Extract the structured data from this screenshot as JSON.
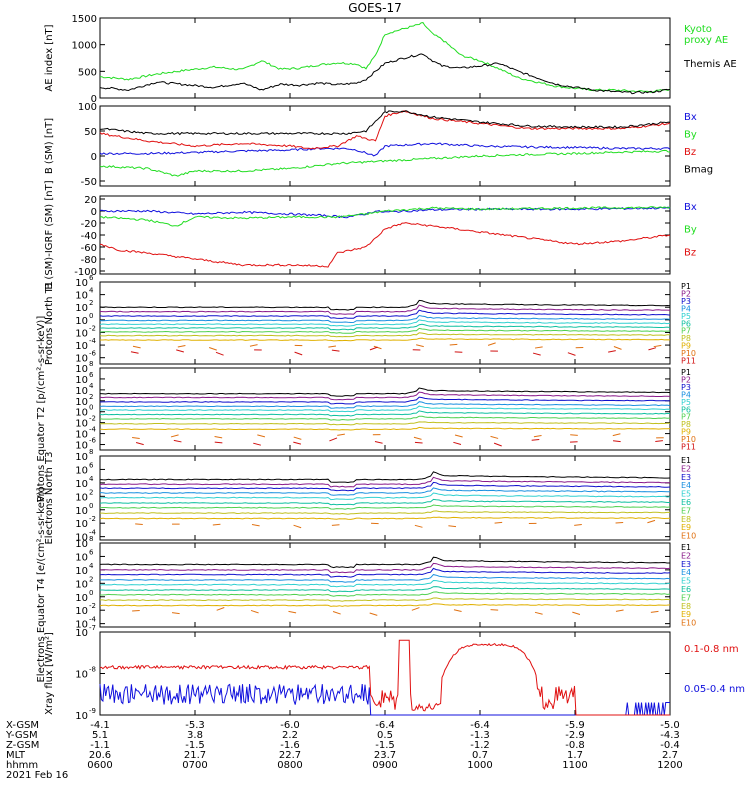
{
  "title": "GOES-17",
  "colors": {
    "black": "#000000",
    "red": "#e01010",
    "green": "#22dd22",
    "blue": "#1010dd",
    "p_colors": [
      "#000000",
      "#8a1a8a",
      "#1010cc",
      "#1a90e0",
      "#30d0d0",
      "#10c0a0",
      "#50d050",
      "#c0c020",
      "#e0b000",
      "#e07010",
      "#d01010"
    ]
  },
  "chart_data": [
    {
      "type": "line",
      "ylabel": "AE index [nT]",
      "ylim": [
        0,
        1500
      ],
      "yticks": [
        "1500",
        "1000",
        "500",
        "0"
      ],
      "log": false,
      "series": [
        {
          "name": "Kyoto proxy AE",
          "color_key": "green",
          "x": [
            6.0,
            6.3,
            6.6,
            6.9,
            7.2,
            7.5,
            7.7,
            7.9,
            8.1,
            8.3,
            8.5,
            8.7,
            8.8,
            8.9,
            9.0,
            9.2,
            9.4,
            9.5,
            9.6,
            9.8,
            10.0,
            10.2,
            10.4,
            10.6,
            10.8,
            11.0,
            11.2,
            11.4,
            11.6,
            11.8,
            12.0
          ],
          "y": [
            400,
            350,
            450,
            520,
            580,
            530,
            700,
            540,
            560,
            620,
            660,
            640,
            550,
            800,
            1200,
            1300,
            1400,
            1200,
            1100,
            800,
            700,
            550,
            380,
            300,
            220,
            180,
            150,
            150,
            130,
            120,
            160
          ]
        },
        {
          "name": "Themis AE",
          "color_key": "black",
          "x": [
            6.0,
            6.3,
            6.6,
            6.9,
            7.2,
            7.5,
            7.7,
            7.9,
            8.1,
            8.3,
            8.5,
            8.7,
            8.8,
            8.9,
            9.0,
            9.2,
            9.4,
            9.5,
            9.6,
            9.8,
            10.0,
            10.2,
            10.4,
            10.6,
            10.8,
            11.0,
            11.2,
            11.4,
            11.6,
            11.8,
            12.0
          ],
          "y": [
            200,
            150,
            300,
            250,
            200,
            280,
            150,
            260,
            240,
            280,
            250,
            280,
            350,
            500,
            650,
            750,
            830,
            700,
            600,
            560,
            600,
            650,
            500,
            380,
            260,
            200,
            150,
            120,
            100,
            110,
            160
          ]
        }
      ],
      "legend": [
        {
          "lines": [
            "Kyoto",
            "proxy AE"
          ],
          "color_key": "green"
        },
        {
          "lines": [
            "Themis AE"
          ],
          "color_key": "black"
        }
      ]
    },
    {
      "type": "line",
      "ylabel": "B (SM) [nT]",
      "ylim": [
        -60,
        100
      ],
      "yticks": [
        "100",
        "50",
        "0",
        "-50"
      ],
      "log": false,
      "series": [
        {
          "name": "Bx",
          "color_key": "blue",
          "x": [
            6.0,
            6.5,
            7.0,
            7.5,
            8.0,
            8.3,
            8.6,
            8.7,
            8.9,
            9.0,
            9.5,
            10.0,
            10.5,
            11.0,
            11.5,
            12.0
          ],
          "y": [
            5,
            5,
            7,
            10,
            12,
            15,
            15,
            12,
            0,
            20,
            25,
            20,
            18,
            17,
            15,
            15
          ]
        },
        {
          "name": "By",
          "color_key": "green",
          "x": [
            6.0,
            6.5,
            6.8,
            7.0,
            7.5,
            8.0,
            8.5,
            9.0,
            9.5,
            10.0,
            10.5,
            11.0,
            11.5,
            12.0
          ],
          "y": [
            -20,
            -25,
            -40,
            -30,
            -30,
            -25,
            -15,
            -10,
            -5,
            0,
            3,
            5,
            8,
            10
          ]
        },
        {
          "name": "Bz",
          "color_key": "red",
          "x": [
            6.0,
            6.5,
            7.0,
            7.5,
            8.0,
            8.2,
            8.5,
            8.7,
            8.9,
            9.0,
            9.2,
            9.5,
            10.0,
            10.5,
            11.0,
            11.5,
            12.0
          ],
          "y": [
            45,
            30,
            20,
            25,
            20,
            15,
            20,
            40,
            30,
            80,
            90,
            75,
            65,
            55,
            55,
            55,
            65
          ]
        },
        {
          "name": "Bmag",
          "color_key": "black",
          "x": [
            6.0,
            6.5,
            7.0,
            7.5,
            8.0,
            8.3,
            8.6,
            8.8,
            9.0,
            9.2,
            9.5,
            10.0,
            10.5,
            11.0,
            11.5,
            12.0
          ],
          "y": [
            55,
            45,
            45,
            45,
            45,
            45,
            45,
            50,
            88,
            90,
            78,
            68,
            60,
            58,
            58,
            68
          ]
        }
      ],
      "legend": [
        {
          "lines": [
            "Bx"
          ],
          "color_key": "blue"
        },
        {
          "lines": [
            "By"
          ],
          "color_key": "green"
        },
        {
          "lines": [
            "Bz"
          ],
          "color_key": "red"
        },
        {
          "lines": [
            "Bmag"
          ],
          "color_key": "black"
        }
      ]
    },
    {
      "type": "line",
      "ylabel": "B (SM)-IGRF (SM) [nT]",
      "ylim": [
        -105,
        25
      ],
      "yticks": [
        "20",
        "0",
        "-20",
        "-40",
        "-60",
        "-80",
        "-100"
      ],
      "log": false,
      "series": [
        {
          "name": "Bx",
          "color_key": "blue",
          "x": [
            6.0,
            6.5,
            7.0,
            7.5,
            8.0,
            8.4,
            8.6,
            8.8,
            8.9,
            9.0,
            9.5,
            10.0,
            11.0,
            12.0
          ],
          "y": [
            0,
            0,
            -5,
            -2,
            -5,
            -8,
            -10,
            -5,
            0,
            -2,
            2,
            3,
            3,
            5
          ]
        },
        {
          "name": "By",
          "color_key": "green",
          "x": [
            6.0,
            6.5,
            6.8,
            7.0,
            7.5,
            8.0,
            8.5,
            8.8,
            9.0,
            9.5,
            10.0,
            11.0,
            12.0
          ],
          "y": [
            -10,
            -15,
            -25,
            -10,
            -12,
            -10,
            -10,
            -5,
            0,
            5,
            3,
            5,
            6
          ]
        },
        {
          "name": "Bz",
          "color_key": "red",
          "x": [
            6.0,
            6.2,
            6.5,
            7.0,
            7.5,
            8.0,
            8.4,
            8.5,
            8.8,
            8.9,
            9.0,
            9.2,
            9.5,
            10.0,
            10.5,
            11.0,
            11.5,
            12.0
          ],
          "y": [
            -55,
            -65,
            -70,
            -80,
            -90,
            -90,
            -92,
            -70,
            -60,
            -45,
            -30,
            -20,
            -25,
            -35,
            -45,
            -55,
            -50,
            -40
          ]
        }
      ],
      "legend": [
        {
          "lines": [
            "Bx"
          ],
          "color_key": "blue"
        },
        {
          "lines": [
            "By"
          ],
          "color_key": "green"
        },
        {
          "lines": [
            "Bz"
          ],
          "color_key": "red"
        }
      ]
    },
    {
      "type": "line",
      "ylabel": "Protons North T1",
      "log": true,
      "yticks_exp": [
        6,
        4,
        2,
        0,
        -2,
        -4,
        -6
      ],
      "ylim_log": [
        -7,
        6
      ],
      "series_labels": [
        "P1",
        "P2",
        "P3",
        "P4",
        "P5",
        "P6",
        "P7",
        "P8",
        "P9",
        "P10",
        "P11"
      ],
      "base_levels": [
        2.0,
        1.3,
        0.6,
        -0.1,
        -0.7,
        -1.3,
        -1.9,
        -2.5,
        -3.2,
        -4.2,
        -5.0
      ],
      "bump_x": 9.35,
      "sparse_from_index": 9
    },
    {
      "type": "line",
      "ylabel": "Protons Equator T2 [p/(cm²-s-sr-keV)]",
      "log": true,
      "yticks_exp": [
        8,
        6,
        4,
        2,
        0,
        -2,
        -4,
        -6
      ],
      "ylim_log": [
        -7,
        8
      ],
      "series_labels": [
        "P1",
        "P2",
        "P3",
        "P4",
        "P5",
        "P6",
        "P7",
        "P8",
        "P9",
        "P10",
        "P11"
      ],
      "base_levels": [
        3.3,
        2.6,
        1.8,
        1.0,
        0.3,
        -0.5,
        -1.3,
        -2.2,
        -3.2,
        -4.5,
        -5.5
      ],
      "bump_x": 9.35,
      "sparse_from_index": 9
    },
    {
      "type": "line",
      "ylabel": "Electrons North T3",
      "log": true,
      "yticks_exp": [
        8,
        6,
        4,
        2,
        0,
        -2,
        -4
      ],
      "ylim_log": [
        -4.5,
        8
      ],
      "series_labels": [
        "E1",
        "E2",
        "E3",
        "E4",
        "E5",
        "E6",
        "E7",
        "E8",
        "E9",
        "E10"
      ],
      "base_levels": [
        4.5,
        3.8,
        3.2,
        2.5,
        1.8,
        1.0,
        0.3,
        -0.5,
        -1.3,
        -2.2
      ],
      "bump_x": 9.5,
      "sparse_from_index": 9
    },
    {
      "type": "line",
      "ylabel": "Electrons Equator T4 [e/(cm²-s-sr-keV)]",
      "log": true,
      "yticks_exp": [
        8,
        6,
        4,
        2,
        0,
        -2,
        -4
      ],
      "ylim_log": [
        -4.5,
        8
      ],
      "series_labels": [
        "E1",
        "E2",
        "E3",
        "E4",
        "E5",
        "E6",
        "E7",
        "E8",
        "E9",
        "E10"
      ],
      "base_levels": [
        4.8,
        4.0,
        3.3,
        2.5,
        1.8,
        1.0,
        0.3,
        -0.5,
        -1.3,
        -2.2
      ],
      "bump_x": 9.5,
      "sparse_from_index": 9
    },
    {
      "type": "line",
      "ylabel": "Xray flux [W/m²]",
      "log": true,
      "yticks_exp": [
        -7,
        -8,
        -9
      ],
      "ylim_log": [
        -9,
        -7
      ],
      "series": [
        {
          "name": "0.1-0.8 nm",
          "color_key": "red"
        },
        {
          "name": "0.05-0.4 nm",
          "color_key": "blue"
        }
      ]
    }
  ],
  "x_axis": {
    "xlim": [
      6,
      12
    ],
    "rows": [
      {
        "label": "X-GSM",
        "values": [
          "-4.1",
          "-5.3",
          "-6.0",
          "-6.4",
          "-6.4",
          "-5.9",
          "-5.0"
        ]
      },
      {
        "label": "Y-GSM",
        "values": [
          "5.1",
          "3.8",
          "2.2",
          "0.5",
          "-1.3",
          "-2.9",
          "-4.3"
        ]
      },
      {
        "label": "Z-GSM",
        "values": [
          "-1.1",
          "-1.5",
          "-1.6",
          "-1.5",
          "-1.2",
          "-0.8",
          "-0.4"
        ]
      },
      {
        "label": "MLT",
        "values": [
          "20.6",
          "21.7",
          "22.7",
          "23.7",
          "0.7",
          "1.7",
          "2.7"
        ]
      },
      {
        "label": "hhmm",
        "values": [
          "0600",
          "0700",
          "0800",
          "0900",
          "1000",
          "1100",
          "1200"
        ]
      }
    ],
    "date": "2021 Feb 16"
  }
}
